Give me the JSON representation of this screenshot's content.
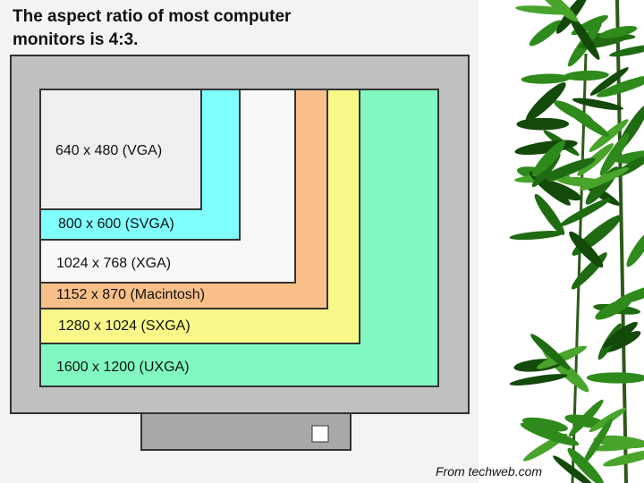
{
  "title": [
    "The aspect ratio of most computer",
    "monitors is 4:3."
  ],
  "resolutions": [
    "640 x 480 (VGA)",
    "800 x 600 (SVGA)",
    "1024 x 768 (XGA)",
    "1152 x 870 (Macintosh)",
    "1280 x 1024 (SXGA)",
    "1600 x 1200 (UXGA)"
  ],
  "source": "From techweb.com"
}
